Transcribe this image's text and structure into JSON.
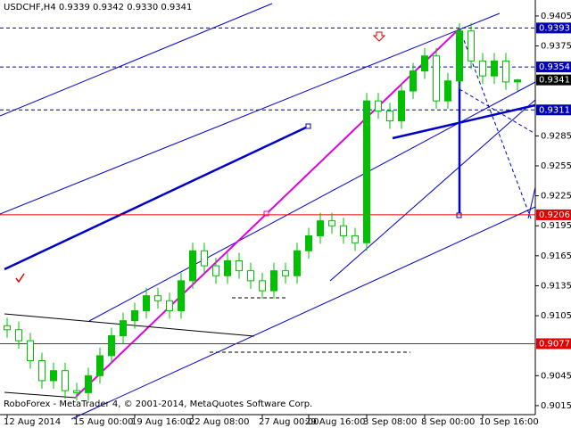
{
  "chart_data": {
    "type": "candlestick",
    "title": "USDCHF,H4 0.9339 0.9342 0.9330 0.9341",
    "footer": "RoboForex - MetaTrader 4, © 2001-2014, MetaQuotes Software Corp.",
    "categories": [
      "12 Aug 2014",
      null,
      null,
      null,
      null,
      null,
      "15 Aug 00:00",
      null,
      null,
      null,
      null,
      "19 Aug 16:00",
      null,
      null,
      null,
      null,
      "22 Aug 08:00",
      null,
      null,
      null,
      null,
      null,
      "27 Aug 00:00",
      null,
      null,
      null,
      "29 Aug 16:00",
      null,
      null,
      null,
      null,
      "3 Sep 08:00",
      null,
      null,
      null,
      null,
      "8 Sep 00:00",
      null,
      null,
      null,
      null,
      "10 Sep 16:00",
      null,
      null,
      null
    ],
    "open": [
      0.9095,
      0.9091,
      0.908,
      0.906,
      0.904,
      0.905,
      0.903,
      0.9028,
      0.9045,
      0.9065,
      0.9085,
      0.91,
      0.911,
      0.9125,
      0.912,
      0.911,
      0.914,
      0.917,
      0.9155,
      0.9145,
      0.916,
      0.915,
      0.914,
      0.913,
      0.915,
      0.9145,
      0.917,
      0.9185,
      0.92,
      0.9195,
      0.9185,
      0.9178,
      0.932,
      0.931,
      0.93,
      0.933,
      0.935,
      0.9365,
      0.932,
      0.934,
      0.939,
      0.936,
      0.9345,
      0.936,
      0.9339
    ],
    "high": [
      0.9103,
      0.9099,
      0.9088,
      0.9068,
      0.9058,
      0.9058,
      0.9038,
      0.9053,
      0.9073,
      0.9093,
      0.9108,
      0.9118,
      0.9133,
      0.9133,
      0.9128,
      0.9148,
      0.9178,
      0.9178,
      0.9163,
      0.9168,
      0.9168,
      0.9158,
      0.9148,
      0.9158,
      0.9158,
      0.9178,
      0.9193,
      0.9208,
      0.9208,
      0.9203,
      0.9193,
      0.9328,
      0.9328,
      0.9318,
      0.9338,
      0.9358,
      0.9373,
      0.9373,
      0.9348,
      0.9398,
      0.9398,
      0.9368,
      0.9368,
      0.9368,
      0.9342
    ],
    "low": [
      0.9083,
      0.9072,
      0.9052,
      0.9032,
      0.9032,
      0.9022,
      0.902,
      0.902,
      0.9037,
      0.9057,
      0.9077,
      0.9092,
      0.9102,
      0.9112,
      0.9102,
      0.9102,
      0.9132,
      0.9147,
      0.9137,
      0.9137,
      0.9142,
      0.9132,
      0.9122,
      0.9122,
      0.9137,
      0.9137,
      0.9162,
      0.9177,
      0.9187,
      0.9177,
      0.917,
      0.917,
      0.9302,
      0.9292,
      0.9292,
      0.9322,
      0.9342,
      0.9312,
      0.9312,
      0.9332,
      0.9352,
      0.9337,
      0.9337,
      0.9331,
      0.933
    ],
    "close": [
      0.9091,
      0.908,
      0.906,
      0.904,
      0.905,
      0.903,
      0.9028,
      0.9045,
      0.9065,
      0.9085,
      0.91,
      0.911,
      0.9125,
      0.912,
      0.911,
      0.914,
      0.917,
      0.9155,
      0.9145,
      0.916,
      0.915,
      0.914,
      0.913,
      0.915,
      0.9145,
      0.917,
      0.9185,
      0.92,
      0.9195,
      0.9185,
      0.9178,
      0.932,
      0.931,
      0.93,
      0.933,
      0.935,
      0.9365,
      0.932,
      0.934,
      0.939,
      0.936,
      0.9345,
      0.936,
      0.9339,
      0.9341
    ],
    "up_color": "#00c000",
    "down_color": "#ffffff",
    "ylim": [
      0.9006,
      0.9421
    ],
    "yticks": [
      0.9405,
      0.9375,
      0.9285,
      0.9255,
      0.9225,
      0.9195,
      0.9165,
      0.9135,
      0.9105,
      0.9045,
      0.9015
    ],
    "levels": [
      {
        "value": 0.9393,
        "color": "#0000b0",
        "style": "dashed"
      },
      {
        "value": 0.9354,
        "color": "#0000b0",
        "style": "dashed"
      },
      {
        "value": 0.9341,
        "color": "#000000",
        "style": "none"
      },
      {
        "value": 0.9311,
        "color": "#0000b0",
        "style": "dashed"
      },
      {
        "value": 0.9206,
        "color": "#e00000",
        "style": "solid"
      },
      {
        "value": 0.9077,
        "color": "#e00000",
        "style": "solid"
      }
    ]
  }
}
